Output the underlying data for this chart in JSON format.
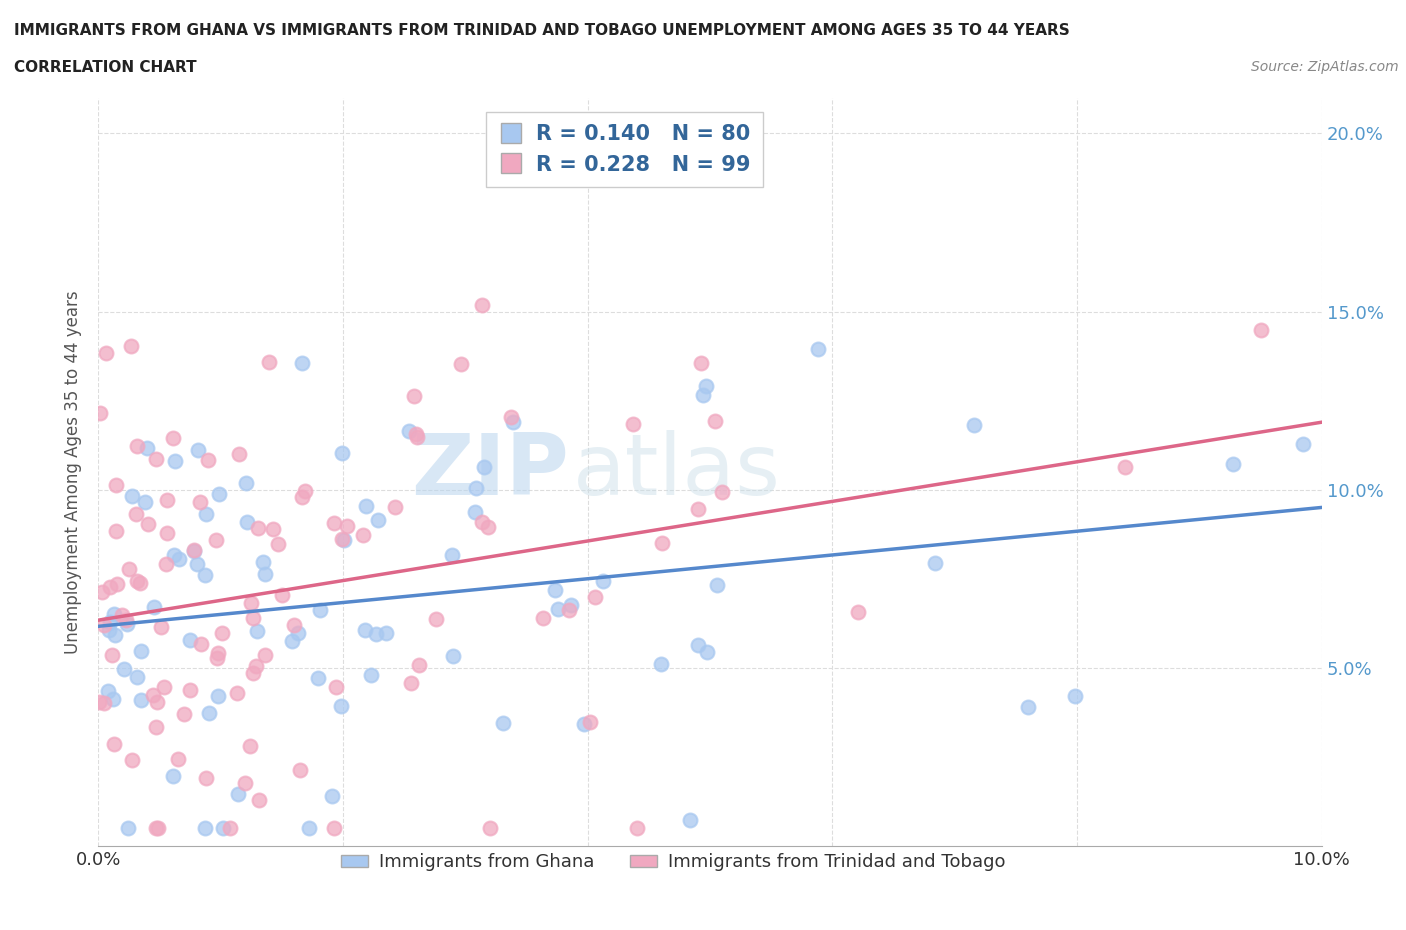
{
  "title_line1": "IMMIGRANTS FROM GHANA VS IMMIGRANTS FROM TRINIDAD AND TOBAGO UNEMPLOYMENT AMONG AGES 35 TO 44 YEARS",
  "title_line2": "CORRELATION CHART",
  "source_text": "Source: ZipAtlas.com",
  "ylabel": "Unemployment Among Ages 35 to 44 years",
  "xlim": [
    0.0,
    0.1
  ],
  "ylim": [
    0.0,
    0.21
  ],
  "ytick_positions": [
    0.05,
    0.1,
    0.15,
    0.2
  ],
  "ytick_labels": [
    "5.0%",
    "10.0%",
    "15.0%",
    "20.0%"
  ],
  "ghana_color": "#a8c8f0",
  "tt_color": "#f0a8c0",
  "ghana_line_color": "#5588cc",
  "tt_line_color": "#dd6688",
  "ghana_R": 0.14,
  "ghana_N": 80,
  "tt_R": 0.228,
  "tt_N": 99,
  "legend_label_ghana": "Immigrants from Ghana",
  "legend_label_tt": "Immigrants from Trinidad and Tobago",
  "background_color": "#ffffff",
  "title_color": "#222222",
  "source_color": "#888888",
  "right_axis_color": "#5599cc",
  "grid_color": "#dddddd",
  "legend_text_color": "#336699"
}
